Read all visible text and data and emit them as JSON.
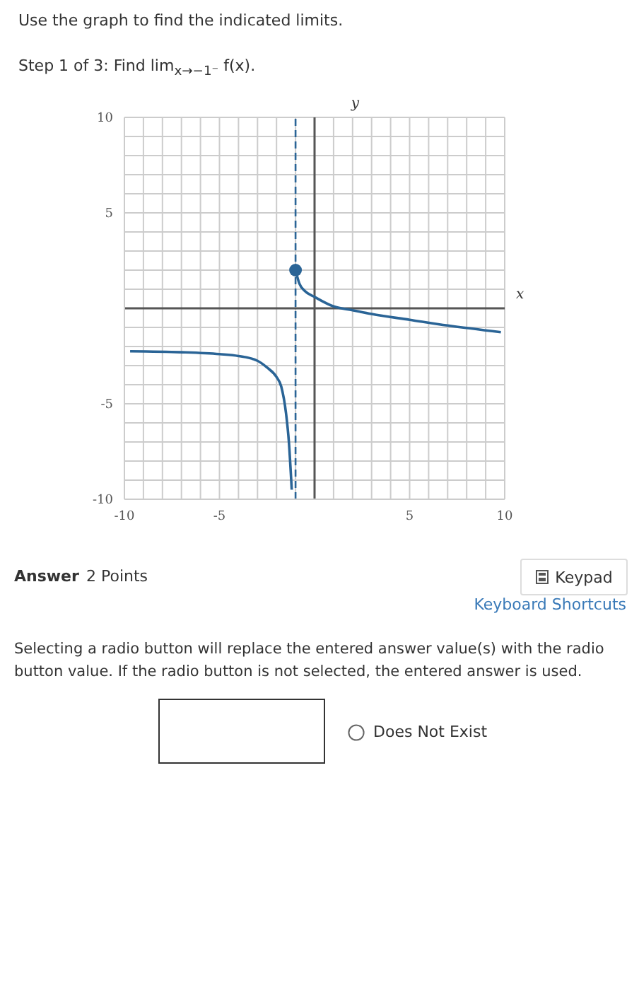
{
  "chart_data": {
    "type": "line",
    "title": "Use the graph to find the indicated limits.",
    "subtitle": "Step 1 of 3: Find lim$_{x→−1⁻}$ f(x).",
    "xlabel": "x",
    "ylabel": "y",
    "xlim": [
      -10,
      10
    ],
    "ylim": [
      -10,
      10
    ],
    "xticks": [
      -10,
      {
        "value": -9,
        "label": null
      },
      {
        "value": -8,
        "label": null
      },
      {
        "value": -7,
        "label": null
      },
      {
        "value": -6,
        "label": null
      },
      -5,
      {
        "value": -4,
        "label": null
      },
      {
        "value": -3,
        "label": null
      },
      {
        "value": -2,
        "label": null
      },
      {
        "value": -1,
        "label": null
      },
      {
        "value": 0,
        "label": null
      },
      {
        "value": 1,
        "label": null
      },
      {
        "value": 2,
        "label": null
      },
      {
        "value": 3,
        "label": null
      },
      {
        "value": 4,
        "label": null
      },
      5,
      {
        "value": 6,
        "label": null
      },
      {
        "value": 7,
        "label": null
      },
      {
        "value": 8,
        "label": null
      },
      {
        "value": 9,
        "label": null
      },
      10
    ],
    "yticks": [
      -10,
      {
        "value": -9,
        "label": null
      },
      {
        "value": -8,
        "label": null
      },
      {
        "value": -7,
        "label": null
      },
      {
        "value": -6,
        "label": null
      },
      -5,
      {
        "value": -4,
        "label": null
      },
      {
        "value": -3,
        "label": null
      },
      {
        "value": -2,
        "label": null
      },
      {
        "value": -1,
        "label": null
      },
      {
        "value": 0,
        "label": null
      },
      {
        "value": 1,
        "label": null
      },
      {
        "value": 2,
        "label": null
      },
      {
        "value": 3,
        "label": null
      },
      {
        "value": 4,
        "label": null
      },
      5,
      {
        "value": 6,
        "label": null
      },
      {
        "value": 7,
        "label": null
      },
      {
        "value": 8,
        "label": null
      },
      {
        "value": 9,
        "label": null
      },
      10
    ],
    "grid": true,
    "marker": "none",
    "line_style": "solid",
    "series": [
      {
        "color": "#2a6496",
        "x": [
          -9.7,
          -7,
          -5,
          -4,
          -3,
          -2.5,
          -2,
          -1.75,
          -1.5,
          -1.35,
          -1.2
        ],
        "values": [
          -2.25,
          -2.3,
          -2.4,
          -2.5,
          -2.75,
          -3.1,
          -3.6,
          -4.1,
          -5.5,
          -7,
          -9.5
        ]
      },
      {
        "color": "#2a6496",
        "x": [
          -1,
          -0.8,
          -0.5,
          0,
          1,
          2,
          3,
          5,
          7,
          9.8
        ],
        "values": [
          2,
          1.3,
          0.9,
          0.6,
          0.1,
          -0.1,
          -0.3,
          -0.6,
          -0.9,
          -1.25
        ]
      },
      {
        "type": "scatter",
        "color": "#2a6496",
        "marker": "circle",
        "x": [
          -1
        ],
        "values": [
          2
        ]
      }
    ],
    "ref_lines": [
      {
        "axis": "x",
        "value": -1,
        "line_style": "dashed",
        "color": "#2a6496"
      }
    ],
    "annotations": [
      "Answer",
      "2 Points",
      "Keypad",
      "Keyboard Shortcuts",
      "Selecting a radio button will replace the entered answer value(s) with the radio button value. If the radio button is not selected, the entered answer is used.",
      "Does Not Exist"
    ]
  }
}
